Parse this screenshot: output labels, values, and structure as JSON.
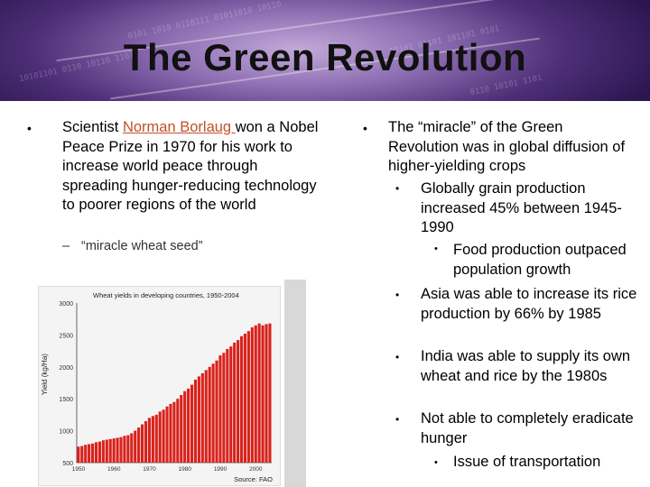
{
  "slide": {
    "title": "The Green Revolution",
    "left": {
      "bullet": "Scientist ",
      "link": "Norman Borlaug ",
      "text_after_link": "won a Nobel Peace Prize in 1970 for his work to increase world peace through spreading hunger-reducing technology to poorer regions of the world",
      "sub_dash": "–",
      "sub_text": "“miracle wheat seed”"
    },
    "right": {
      "main": "The “miracle” of the Green Revolution was in global diffusion of higher-yielding crops",
      "items": [
        {
          "text": "Globally grain production increased 45% between 1945-1990",
          "sub": "Food production outpaced population growth"
        },
        {
          "text": "Asia was able to increase its rice production by 66% by 1985"
        },
        {
          "text": "India was able to supply its own wheat and rice by the 1980s"
        },
        {
          "text": "Not able to completely eradicate hunger",
          "sub": "Issue of transportation"
        }
      ]
    }
  },
  "chart_data": {
    "type": "bar",
    "title": "Wheat yields in developing countries, 1950-2004",
    "ylabel": "Yield (kg/Ha)",
    "source": "Source:  FAO",
    "ylim": [
      500,
      3000
    ],
    "yticks": [
      "3000",
      "2500",
      "2000",
      "1500",
      "1000",
      "500"
    ],
    "xticks": [
      "1950",
      "1960",
      "1970",
      "1980",
      "1990",
      "2000"
    ],
    "x": [
      1950,
      1951,
      1952,
      1953,
      1954,
      1955,
      1956,
      1957,
      1958,
      1959,
      1960,
      1961,
      1962,
      1963,
      1964,
      1965,
      1966,
      1967,
      1968,
      1969,
      1970,
      1971,
      1972,
      1973,
      1974,
      1975,
      1976,
      1977,
      1978,
      1979,
      1980,
      1981,
      1982,
      1983,
      1984,
      1985,
      1986,
      1987,
      1988,
      1989,
      1990,
      1991,
      1992,
      1993,
      1994,
      1995,
      1996,
      1997,
      1998,
      1999,
      2000,
      2001,
      2002,
      2003,
      2004
    ],
    "values": [
      750,
      760,
      780,
      790,
      800,
      820,
      830,
      850,
      860,
      870,
      880,
      890,
      900,
      920,
      930,
      960,
      1000,
      1050,
      1100,
      1150,
      1200,
      1230,
      1250,
      1300,
      1330,
      1380,
      1420,
      1450,
      1500,
      1560,
      1620,
      1660,
      1720,
      1800,
      1850,
      1900,
      1950,
      2000,
      2050,
      2100,
      2180,
      2220,
      2280,
      2320,
      2380,
      2420,
      2480,
      2520,
      2560,
      2620,
      2650,
      2680,
      2650,
      2670,
      2680
    ]
  }
}
